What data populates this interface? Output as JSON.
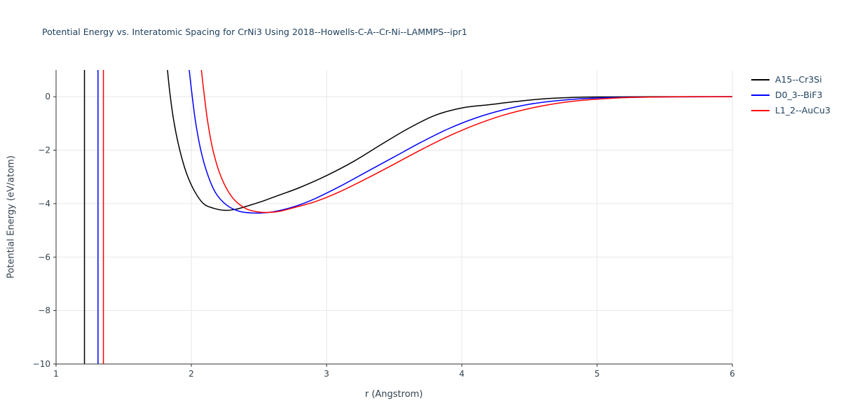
{
  "chart_data": {
    "type": "line",
    "title": "Potential Energy vs. Interatomic Spacing for CrNi3 Using 2018--Howells-C-A--Cr-Ni--LAMMPS--ipr1",
    "xlabel": "r (Angstrom)",
    "ylabel": "Potential Energy (eV/atom)",
    "xlim": [
      1,
      6
    ],
    "ylim": [
      -10,
      1
    ],
    "xticks": [
      1,
      2,
      3,
      4,
      5,
      6
    ],
    "yticks": [
      0,
      -2,
      -4,
      -6,
      -8,
      -10
    ],
    "grid": true,
    "legend_position": "top-right-outside",
    "colors": {
      "background": "#ffffff",
      "grid": "#e7e7e7",
      "axis": "#333333",
      "tick_text": "#33424f",
      "title_text": "#20415f"
    },
    "series": [
      {
        "name": "A15--Cr3Si",
        "color": "#000000",
        "wall_x": 1.21,
        "points": [
          [
            1.82,
            1.2
          ],
          [
            1.84,
            0.2
          ],
          [
            1.87,
            -0.9
          ],
          [
            1.91,
            -1.9
          ],
          [
            1.96,
            -2.8
          ],
          [
            2.02,
            -3.5
          ],
          [
            2.09,
            -4.0
          ],
          [
            2.17,
            -4.18
          ],
          [
            2.25,
            -4.25
          ],
          [
            2.33,
            -4.21
          ],
          [
            2.42,
            -4.08
          ],
          [
            2.52,
            -3.92
          ],
          [
            2.65,
            -3.68
          ],
          [
            2.8,
            -3.4
          ],
          [
            3.0,
            -2.95
          ],
          [
            3.2,
            -2.42
          ],
          [
            3.4,
            -1.8
          ],
          [
            3.6,
            -1.2
          ],
          [
            3.8,
            -0.7
          ],
          [
            4.0,
            -0.42
          ],
          [
            4.2,
            -0.3
          ],
          [
            4.4,
            -0.18
          ],
          [
            4.6,
            -0.08
          ],
          [
            4.8,
            -0.03
          ],
          [
            5.0,
            -0.01
          ],
          [
            5.5,
            0.0
          ],
          [
            6.0,
            0.0
          ]
        ]
      },
      {
        "name": "D0_3--BiF3",
        "color": "#0000ff",
        "wall_x": 1.31,
        "points": [
          [
            1.98,
            1.2
          ],
          [
            2.0,
            0.3
          ],
          [
            2.03,
            -0.9
          ],
          [
            2.07,
            -2.0
          ],
          [
            2.12,
            -2.9
          ],
          [
            2.18,
            -3.6
          ],
          [
            2.26,
            -4.05
          ],
          [
            2.35,
            -4.28
          ],
          [
            2.45,
            -4.35
          ],
          [
            2.55,
            -4.34
          ],
          [
            2.65,
            -4.26
          ],
          [
            2.78,
            -4.08
          ],
          [
            2.92,
            -3.8
          ],
          [
            3.1,
            -3.35
          ],
          [
            3.3,
            -2.8
          ],
          [
            3.5,
            -2.25
          ],
          [
            3.7,
            -1.7
          ],
          [
            3.9,
            -1.2
          ],
          [
            4.1,
            -0.8
          ],
          [
            4.3,
            -0.5
          ],
          [
            4.5,
            -0.28
          ],
          [
            4.7,
            -0.15
          ],
          [
            4.9,
            -0.07
          ],
          [
            5.1,
            -0.03
          ],
          [
            5.5,
            -0.01
          ],
          [
            6.0,
            0.0
          ]
        ]
      },
      {
        "name": "L1_2--AuCu3",
        "color": "#ff0000",
        "wall_x": 1.35,
        "points": [
          [
            2.07,
            1.2
          ],
          [
            2.09,
            0.3
          ],
          [
            2.12,
            -0.9
          ],
          [
            2.16,
            -2.0
          ],
          [
            2.22,
            -3.0
          ],
          [
            2.3,
            -3.75
          ],
          [
            2.39,
            -4.15
          ],
          [
            2.48,
            -4.3
          ],
          [
            2.57,
            -4.33
          ],
          [
            2.66,
            -4.28
          ],
          [
            2.78,
            -4.12
          ],
          [
            2.92,
            -3.92
          ],
          [
            3.1,
            -3.55
          ],
          [
            3.3,
            -3.05
          ],
          [
            3.5,
            -2.52
          ],
          [
            3.7,
            -1.98
          ],
          [
            3.9,
            -1.48
          ],
          [
            4.1,
            -1.05
          ],
          [
            4.3,
            -0.7
          ],
          [
            4.5,
            -0.44
          ],
          [
            4.7,
            -0.25
          ],
          [
            4.9,
            -0.13
          ],
          [
            5.1,
            -0.06
          ],
          [
            5.3,
            -0.02
          ],
          [
            5.7,
            0.0
          ],
          [
            6.0,
            0.0
          ]
        ]
      }
    ]
  }
}
